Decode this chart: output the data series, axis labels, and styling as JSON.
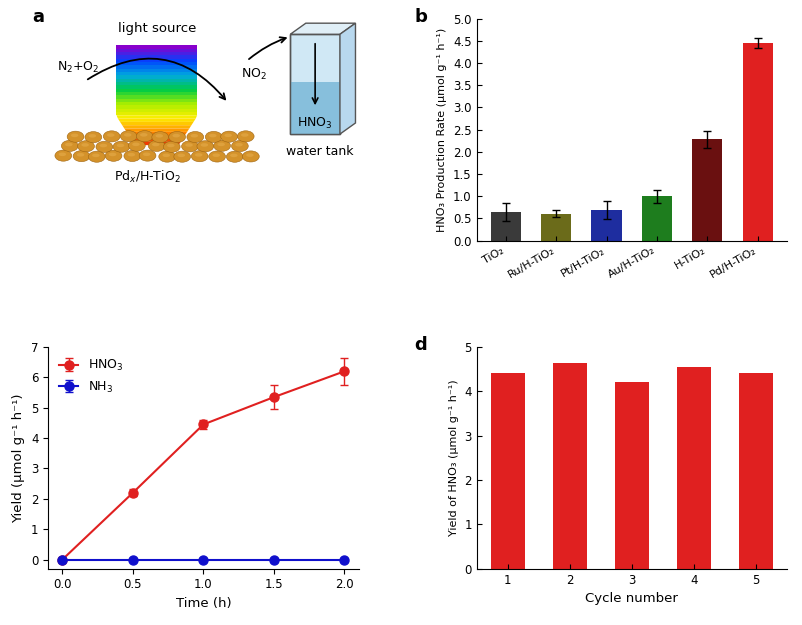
{
  "panel_b": {
    "categories": [
      "TiO₂",
      "Ru/H-TiO₂",
      "Pt/H-TiO₂",
      "Au/H-TiO₂",
      "H-TiO₂",
      "Pd/H-TiO₂"
    ],
    "values": [
      0.65,
      0.6,
      0.68,
      1.0,
      2.28,
      4.45
    ],
    "errors": [
      0.2,
      0.08,
      0.2,
      0.15,
      0.2,
      0.12
    ],
    "colors": [
      "#3a3a3a",
      "#6b6b1a",
      "#1e2d9f",
      "#1e7d1e",
      "#6a1010",
      "#e02020"
    ],
    "ylabel": "HNO₃ Production Rate (μmol g⁻¹ h⁻¹)",
    "ylim": [
      0,
      5.0
    ],
    "yticks": [
      0.0,
      0.5,
      1.0,
      1.5,
      2.0,
      2.5,
      3.0,
      3.5,
      4.0,
      4.5,
      5.0
    ]
  },
  "panel_c": {
    "hno3_x": [
      0.0,
      0.5,
      1.0,
      1.5,
      2.0
    ],
    "hno3_y": [
      0.0,
      2.2,
      4.45,
      5.35,
      6.2
    ],
    "hno3_err": [
      0.0,
      0.12,
      0.15,
      0.4,
      0.45
    ],
    "nh3_x": [
      0.0,
      0.5,
      1.0,
      1.5,
      2.0
    ],
    "nh3_y": [
      0.0,
      0.0,
      0.0,
      0.0,
      0.0
    ],
    "nh3_err": [
      0.0,
      0.0,
      0.0,
      0.0,
      0.0
    ],
    "hno3_color": "#e02020",
    "nh3_color": "#1010cc",
    "xlabel": "Time (h)",
    "ylabel": "Yield (μmol g⁻¹ h⁻¹)",
    "ylim": [
      -0.3,
      7
    ],
    "yticks": [
      0,
      1,
      2,
      3,
      4,
      5,
      6,
      7
    ],
    "xticks": [
      0.0,
      0.5,
      1.0,
      1.5,
      2.0
    ]
  },
  "panel_d": {
    "cycles": [
      1,
      2,
      3,
      4,
      5
    ],
    "values": [
      4.42,
      4.65,
      4.22,
      4.55,
      4.42
    ],
    "color": "#e02020",
    "xlabel": "Cycle number",
    "ylabel": "Yield of HNO₃ (μmol g⁻¹ h⁻¹)",
    "ylim": [
      0,
      5
    ],
    "yticks": [
      0,
      1,
      2,
      3,
      4,
      5
    ]
  },
  "label_fontsize": 13,
  "tick_fontsize": 9,
  "axis_label_fontsize": 9.5
}
